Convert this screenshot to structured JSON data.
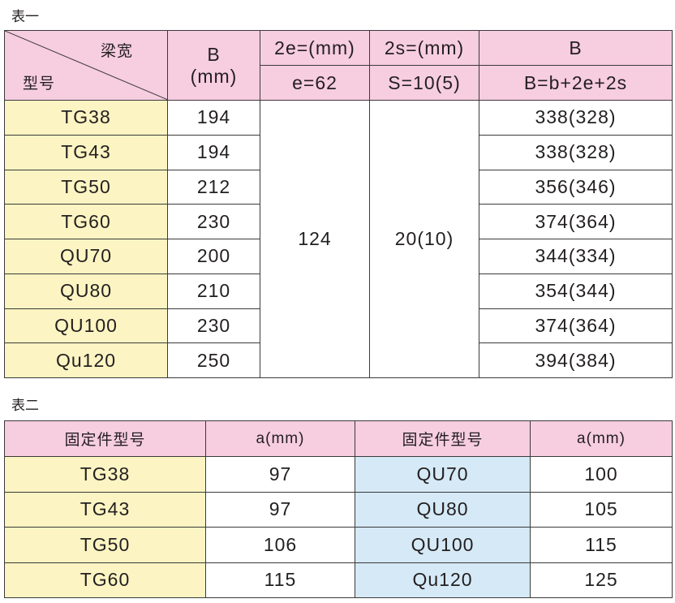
{
  "table1": {
    "title": "表一",
    "header": {
      "corner_top": "梁宽",
      "corner_bottom": "型号",
      "b_top": "B",
      "b_bottom": "(mm)",
      "e_top": "2e=(mm)",
      "e_bottom": "e=62",
      "s_top": "2s=(mm)",
      "s_bottom": "S=10(5)",
      "total_top": "B",
      "total_bottom": "B=b+2e+2s"
    },
    "rows": [
      [
        "TG38",
        194,
        "338(328)"
      ],
      [
        "TG43",
        194,
        "338(328)"
      ],
      [
        "TG50",
        212,
        "356(346)"
      ],
      [
        "TG60",
        230,
        "374(364)"
      ],
      [
        "QU70",
        200,
        "344(334)"
      ],
      [
        "QU80",
        210,
        "354(344)"
      ],
      [
        "QU100",
        230,
        "374(364)"
      ],
      [
        "Qu120",
        250,
        "394(384)"
      ]
    ],
    "e_value": 124,
    "s_value": "20(10)"
  },
  "table2": {
    "title": "表二",
    "header": [
      "固定件型号",
      "a(mm)",
      "固定件型号",
      "a(mm)"
    ],
    "rows": [
      [
        "TG38",
        97,
        "QU70",
        100
      ],
      [
        "TG43",
        97,
        "QU80",
        105
      ],
      [
        "TG50",
        106,
        "QU100",
        115
      ],
      [
        "TG60",
        115,
        "Qu120",
        125
      ]
    ]
  }
}
